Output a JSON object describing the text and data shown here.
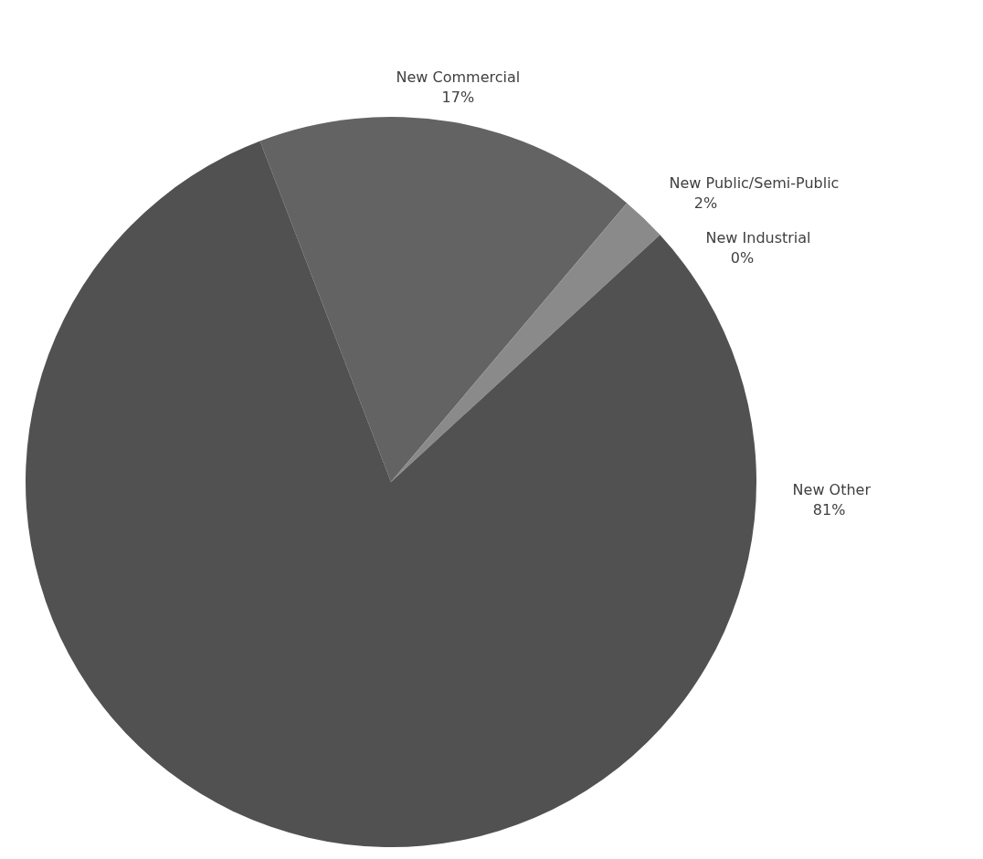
{
  "chart_data": {
    "type": "pie",
    "categories": [
      "New Commercial",
      "New Public/Semi-Public",
      "New Industrial",
      "New Other"
    ],
    "values": [
      17,
      2,
      0,
      81
    ],
    "value_labels": [
      "17%",
      "2%",
      "0%",
      "81%"
    ],
    "colors": [
      "#636363",
      "#8a8a8a",
      "#a5a5a5",
      "#515151"
    ],
    "legend": false
  }
}
